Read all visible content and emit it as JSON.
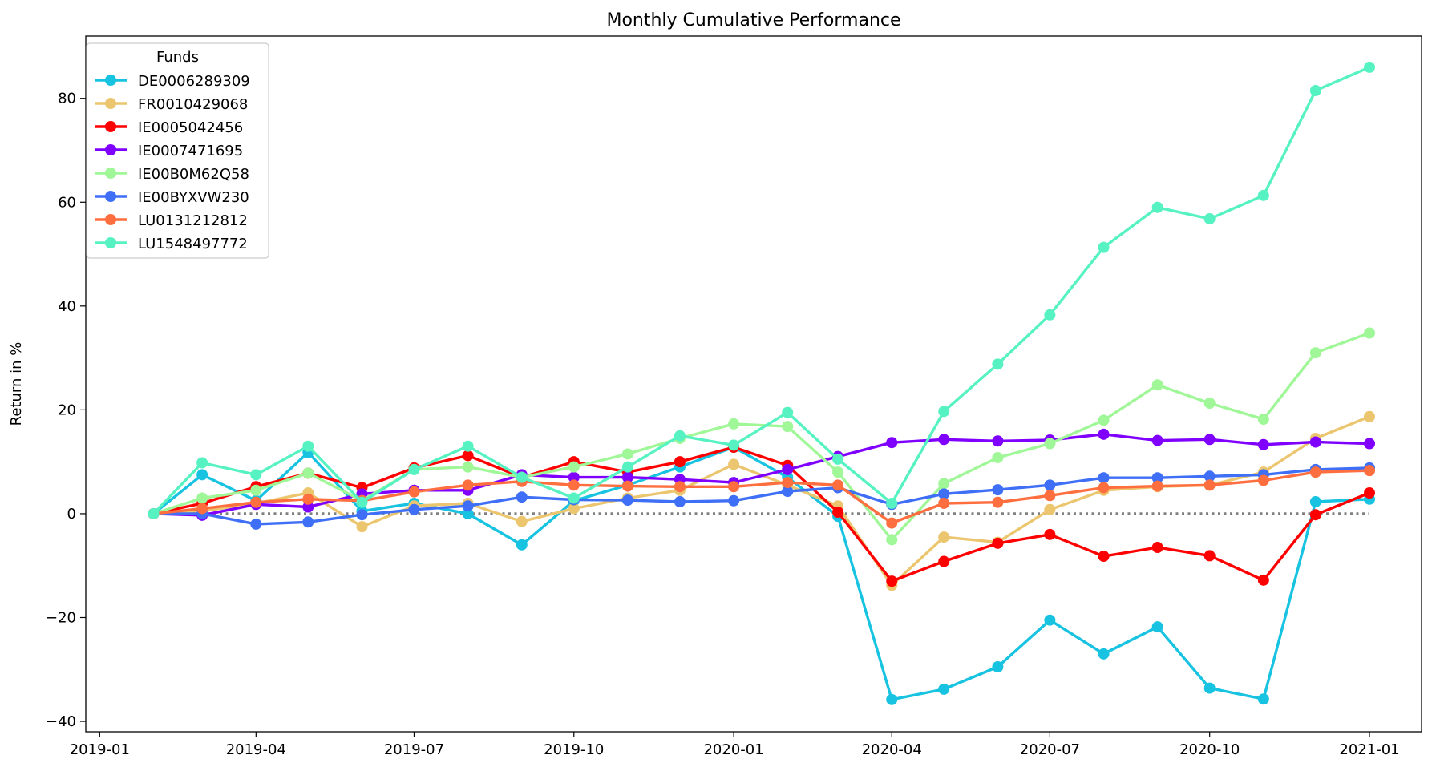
{
  "chart_data": {
    "type": "line",
    "title": "Monthly Cumulative Performance",
    "xlabel": "",
    "ylabel": "Return in %",
    "legend_title": "Funds",
    "legend_position": "top-left",
    "grid": false,
    "xlim": [
      "2018-12-24",
      "2021-01-31"
    ],
    "ylim": [
      -42,
      92
    ],
    "x_ticks": [
      "2019-01",
      "2019-04",
      "2019-07",
      "2019-10",
      "2020-01",
      "2020-04",
      "2020-07",
      "2020-10",
      "2021-01"
    ],
    "y_ticks": [
      -40,
      -20,
      0,
      20,
      40,
      60,
      80
    ],
    "y_tick_labels": [
      "−40",
      "−20",
      "0",
      "20",
      "40",
      "60",
      "80"
    ],
    "zero_line": {
      "style": "dotted",
      "color": "#808080"
    },
    "x": [
      "2019-02-01",
      "2019-03-01",
      "2019-04-01",
      "2019-05-01",
      "2019-06-01",
      "2019-07-01",
      "2019-08-01",
      "2019-09-01",
      "2019-10-01",
      "2019-11-01",
      "2019-12-01",
      "2020-01-01",
      "2020-02-01",
      "2020-03-01",
      "2020-04-01",
      "2020-05-01",
      "2020-06-01",
      "2020-07-01",
      "2020-08-01",
      "2020-09-01",
      "2020-10-01",
      "2020-11-01",
      "2020-12-01",
      "2021-01-01"
    ],
    "series": [
      {
        "name": "DE0006289309",
        "color": "#17c3e0",
        "values": [
          0,
          7.5,
          2.5,
          11.8,
          0.5,
          2.0,
          0,
          -6.0,
          2.5,
          5.5,
          9.0,
          12.8,
          7.0,
          -0.5,
          -35.8,
          -33.8,
          -29.5,
          -20.5,
          -27.0,
          -21.8,
          -33.6,
          -35.7,
          2.3,
          2.8
        ]
      },
      {
        "name": "FR0010429068",
        "color": "#ecc66f",
        "values": [
          0,
          0.5,
          2.0,
          4.0,
          -2.5,
          1.5,
          2.0,
          -1.5,
          1.0,
          3.0,
          4.5,
          9.5,
          5.5,
          1.5,
          -13.8,
          -4.5,
          -5.5,
          0.8,
          4.5,
          5.2,
          5.5,
          8.0,
          14.5,
          18.7
        ]
      },
      {
        "name": "IE0005042456",
        "color": "#ff0000",
        "values": [
          0,
          2.0,
          5.2,
          7.8,
          5.0,
          8.8,
          11.2,
          7.0,
          10.0,
          8.0,
          10.0,
          12.8,
          9.3,
          0.3,
          -13.0,
          -9.2,
          -5.7,
          -4.0,
          -8.2,
          -6.5,
          -8.1,
          -12.8,
          -0.2,
          4.0
        ]
      },
      {
        "name": "IE0007471695",
        "color": "#7f00ff",
        "values": [
          0,
          -0.3,
          1.8,
          1.3,
          3.8,
          4.5,
          4.5,
          7.5,
          7.0,
          7.0,
          6.6,
          6.0,
          8.5,
          11.0,
          13.7,
          14.3,
          14.0,
          14.2,
          15.3,
          14.1,
          14.3,
          13.3,
          13.8,
          13.5
        ]
      },
      {
        "name": "IE00B0M62Q58",
        "color": "#9ff797",
        "values": [
          0,
          3.0,
          4.5,
          7.8,
          2.5,
          8.5,
          9.0,
          7.0,
          9.0,
          11.5,
          14.5,
          17.3,
          16.8,
          8.0,
          -5.0,
          5.8,
          10.8,
          13.5,
          18.0,
          24.8,
          21.3,
          18.2,
          31.0,
          34.8
        ]
      },
      {
        "name": "IE00BYXVW230",
        "color": "#3e6ff6",
        "values": [
          0,
          0,
          -2.0,
          -1.6,
          -0.2,
          0.8,
          1.5,
          3.2,
          2.7,
          2.6,
          2.3,
          2.5,
          4.3,
          5.0,
          1.8,
          3.8,
          4.6,
          5.5,
          6.9,
          6.9,
          7.2,
          7.5,
          8.5,
          8.8
        ]
      },
      {
        "name": "LU0131212812",
        "color": "#ff6e3e",
        "values": [
          0,
          1.0,
          2.2,
          2.8,
          2.5,
          4.2,
          5.5,
          6.2,
          5.5,
          5.3,
          5.2,
          5.2,
          6.0,
          5.5,
          -1.8,
          2.0,
          2.2,
          3.5,
          5.0,
          5.3,
          5.5,
          6.4,
          8.0,
          8.3
        ]
      },
      {
        "name": "LU1548497772",
        "color": "#56f2c2",
        "values": [
          0,
          9.8,
          7.5,
          13.0,
          2.2,
          8.5,
          13.0,
          7.0,
          3.0,
          9.0,
          15.0,
          13.2,
          19.5,
          10.5,
          2.0,
          19.7,
          28.8,
          38.3,
          51.3,
          59.0,
          56.8,
          61.3,
          81.5,
          86.0
        ]
      }
    ]
  }
}
